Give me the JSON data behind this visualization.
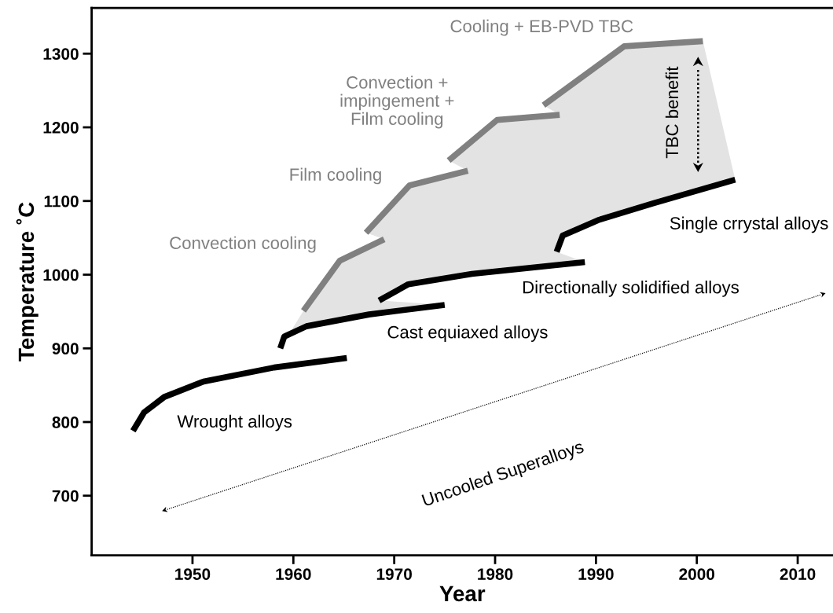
{
  "chart_data": {
    "type": "line",
    "xlabel": "Year",
    "ylabel": "Temperature ˚C",
    "xlim": [
      1940,
      2013.5
    ],
    "ylim": [
      619,
      1362
    ],
    "xticks": [
      1950,
      1960,
      1970,
      1980,
      1990,
      2000,
      2010
    ],
    "yticks": [
      700,
      800,
      900,
      1000,
      1100,
      1200,
      1300
    ],
    "grid": false,
    "legend": false,
    "marker": "none",
    "series": [
      {
        "color": "#000000",
        "x": [
          1944.1,
          1945.2,
          1947.2,
          1951.1,
          1958.1,
          1965.3
        ],
        "values": [
          788,
          813,
          834,
          855,
          874,
          887
        ]
      },
      {
        "color": "#000000",
        "x": [
          1958.7,
          1959.1,
          1961.3,
          1967.5,
          1975
        ],
        "values": [
          900,
          916,
          930,
          946,
          959
        ]
      },
      {
        "color": "#000000",
        "x": [
          1968.5,
          1971.4,
          1977.7,
          1988.9
        ],
        "values": [
          965,
          987,
          1001,
          1017
        ]
      },
      {
        "color": "#000000",
        "x": [
          1986.1,
          1986.7,
          1990.2,
          1995.7,
          2003.8
        ],
        "values": [
          1031,
          1053,
          1074,
          1097,
          1129
        ]
      },
      {
        "color": "#808080",
        "x": [
          1961,
          1964.6,
          1969
        ],
        "values": [
          951,
          1019,
          1048
        ]
      },
      {
        "color": "#808080",
        "x": [
          1967.2,
          1971.5,
          1977.3
        ],
        "values": [
          1057,
          1121,
          1141
        ]
      },
      {
        "color": "#808080",
        "x": [
          1975.4,
          1980.2,
          1986.4
        ],
        "values": [
          1155,
          1210,
          1217
        ]
      },
      {
        "color": "#808080",
        "x": [
          1984.8,
          1992.8,
          2000.6
        ],
        "values": [
          1230,
          1310,
          1317
        ]
      }
    ],
    "annotations": [
      "Wrought alloys",
      "Cast equiaxed alloys",
      "Directionally solidified alloys",
      "Single crrystal alloys",
      "Convection cooling",
      "Film cooling",
      "Convection +\nimpingement +\nFilm cooling",
      "Cooling + EB-PVD TBC",
      "Uncooled Superalloys",
      "TBC benefit"
    ]
  }
}
